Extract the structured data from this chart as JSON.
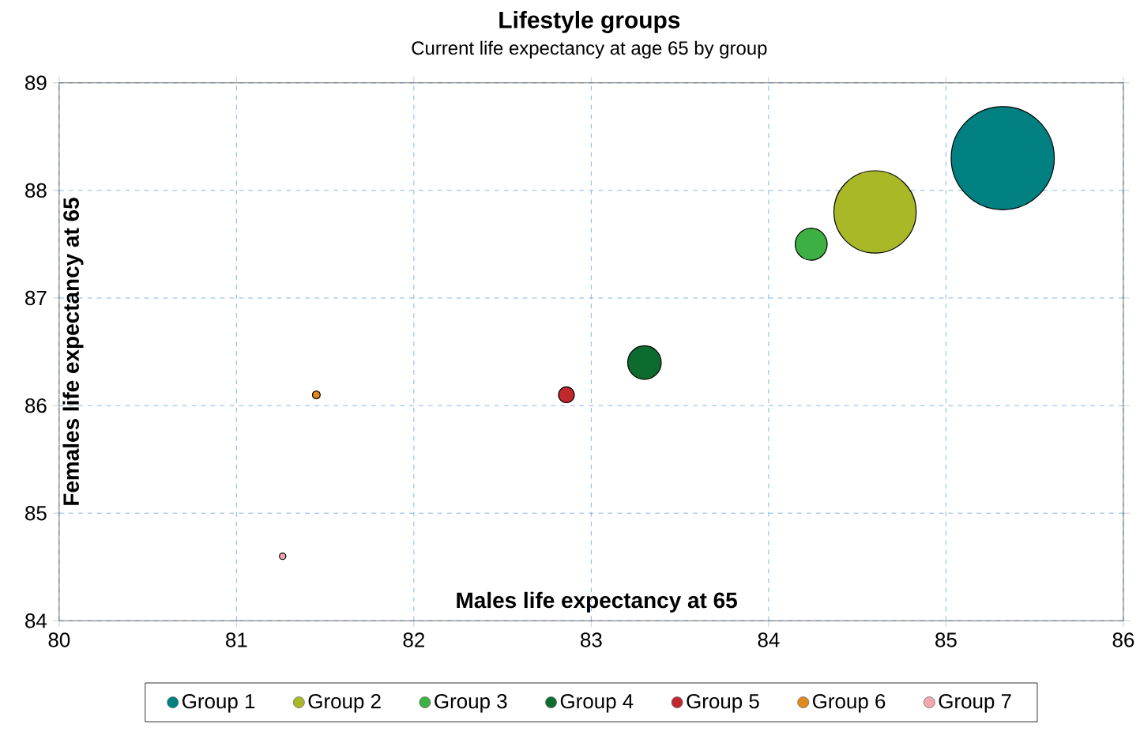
{
  "chart_data": {
    "type": "bubble",
    "title": "Lifestyle groups",
    "subtitle": "Current life expectancy at age 65 by group",
    "xlabel": "Males life expectancy at 65",
    "ylabel": "Females life expectancy at 65",
    "xlim": [
      80,
      86
    ],
    "xticks": [
      80,
      81,
      82,
      83,
      84,
      85,
      86
    ],
    "ylim": [
      84,
      89
    ],
    "yticks": [
      84,
      85,
      86,
      87,
      88,
      89
    ],
    "grid": true,
    "legend": "bottom",
    "series": [
      {
        "name": "Group 1",
        "color": "#008080",
        "x": [
          85.32
        ],
        "values": [
          88.3
        ],
        "sizes": [
          1
        ]
      },
      {
        "name": "Group 2",
        "color": "#a8b827",
        "x": [
          84.6
        ],
        "values": [
          87.8
        ],
        "sizes": [
          0.64
        ]
      },
      {
        "name": "Group 3",
        "color": "#3cb043",
        "x": [
          84.24
        ],
        "values": [
          87.5
        ],
        "sizes": [
          0.1
        ]
      },
      {
        "name": "Group 4",
        "color": "#0d6b2f",
        "x": [
          83.3
        ],
        "values": [
          86.4
        ],
        "sizes": [
          0.11
        ]
      },
      {
        "name": "Group 5",
        "color": "#c0282d",
        "x": [
          82.86
        ],
        "values": [
          86.1
        ],
        "sizes": [
          0.026
        ]
      },
      {
        "name": "Group 6",
        "color": "#e08a1e",
        "x": [
          81.45
        ],
        "values": [
          86.1
        ],
        "sizes": [
          0.007
        ]
      },
      {
        "name": "Group 7",
        "color": "#f4a6b0",
        "x": [
          81.26
        ],
        "values": [
          84.6
        ],
        "sizes": [
          0.005
        ]
      }
    ]
  }
}
